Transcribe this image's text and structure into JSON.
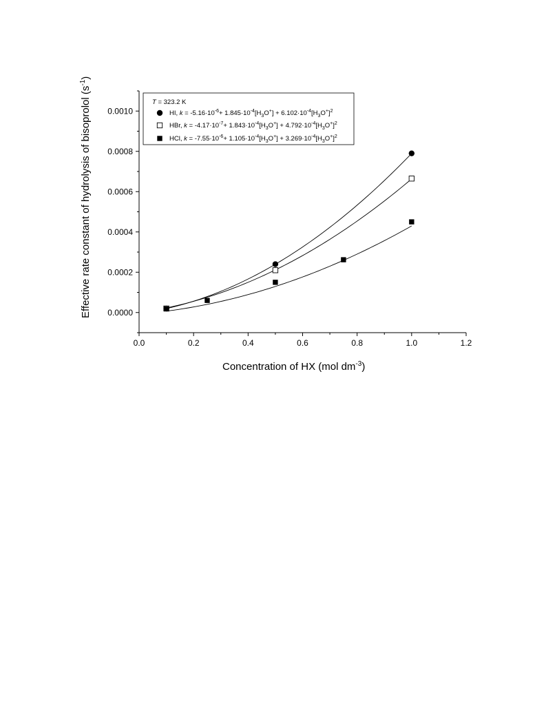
{
  "chart_data": {
    "type": "scatter",
    "xlabel": "Concentration of HX (mol dm",
    "xlabel_sup": "-3",
    "xlabel_end": ")",
    "ylabel": "Effective rate constant of hydrolysis of bisoprolol (s",
    "ylabel_sup": "-1",
    "ylabel_end": ")",
    "xlim": [
      0.0,
      1.2
    ],
    "ylim": [
      -0.0001,
      0.0011
    ],
    "x_ticks": [
      "0.0",
      "0.2",
      "0.4",
      "0.6",
      "0.8",
      "1.0",
      "1.2"
    ],
    "x_tick_values": [
      0.0,
      0.2,
      0.4,
      0.6,
      0.8,
      1.0,
      1.2
    ],
    "y_ticks": [
      "0.0000",
      "0.0002",
      "0.0004",
      "0.0006",
      "0.0008",
      "0.0010"
    ],
    "y_tick_values": [
      0.0,
      0.0002,
      0.0004,
      0.0006,
      0.0008,
      0.001
    ],
    "grid": false,
    "legend_position": "top-left",
    "legend_header": {
      "var": "T",
      "rest": " = 323.2 K"
    },
    "series": [
      {
        "name": "HI",
        "marker": "filled-circle",
        "x": [
          0.1,
          0.5,
          1.0
        ],
        "y": [
          2e-05,
          0.00024,
          0.00079
        ],
        "fit": [
          -5.16e-06,
          0.0001845,
          0.0006102
        ],
        "legend": {
          "name": "HI",
          "pre": ", ",
          "k": "k",
          "eq1": " = -5.16·10",
          "e1": "-6",
          "eq2": "+ 1.845·10",
          "e2": "-4",
          "eq3": "[H",
          "s3": "3",
          "eq4": "O",
          "p4": "+",
          "eq5": "] + 6.102·10",
          "e5": "-4",
          "eq6": "[H",
          "s6": "3",
          "eq7": "O",
          "p7": "+",
          "eq8": "]",
          "sq": "2"
        }
      },
      {
        "name": "HBr",
        "marker": "open-square",
        "x": [
          0.1,
          0.5,
          1.0
        ],
        "y": [
          2e-05,
          0.00021,
          0.000665
        ],
        "fit": [
          -4.17e-07,
          0.0001843,
          0.0004792
        ],
        "legend": {
          "name": "HBr",
          "pre": ", ",
          "k": "k",
          "eq1": " = -4.17·10",
          "e1": "-7",
          "eq2": "+ 1.843·10",
          "e2": "-4",
          "eq3": "[H",
          "s3": "3",
          "eq4": "O",
          "p4": "+",
          "eq5": "] + 4.792·10",
          "e5": "-4",
          "eq6": "[H",
          "s6": "3",
          "eq7": "O",
          "p7": "+",
          "eq8": "]",
          "sq": "2"
        }
      },
      {
        "name": "HCl",
        "marker": "filled-square",
        "x": [
          0.1,
          0.25,
          0.5,
          0.75,
          1.0
        ],
        "y": [
          1.8e-05,
          6e-05,
          0.00015,
          0.000262,
          0.00045
        ],
        "fit": [
          -7.55e-06,
          0.0001105,
          0.0003269
        ],
        "legend": {
          "name": "HCl",
          "pre": ", ",
          "k": "k",
          "eq1": " = -7.55·10",
          "e1": "-6",
          "eq2": "+ 1.105·10",
          "e2": "-4",
          "eq3": "[H",
          "s3": "3",
          "eq4": "O",
          "p4": "+",
          "eq5": "] + 3.269·10",
          "e5": "-4",
          "eq6": "[H",
          "s6": "3",
          "eq7": "O",
          "p7": "+",
          "eq8": "]",
          "sq": "2"
        }
      }
    ]
  }
}
